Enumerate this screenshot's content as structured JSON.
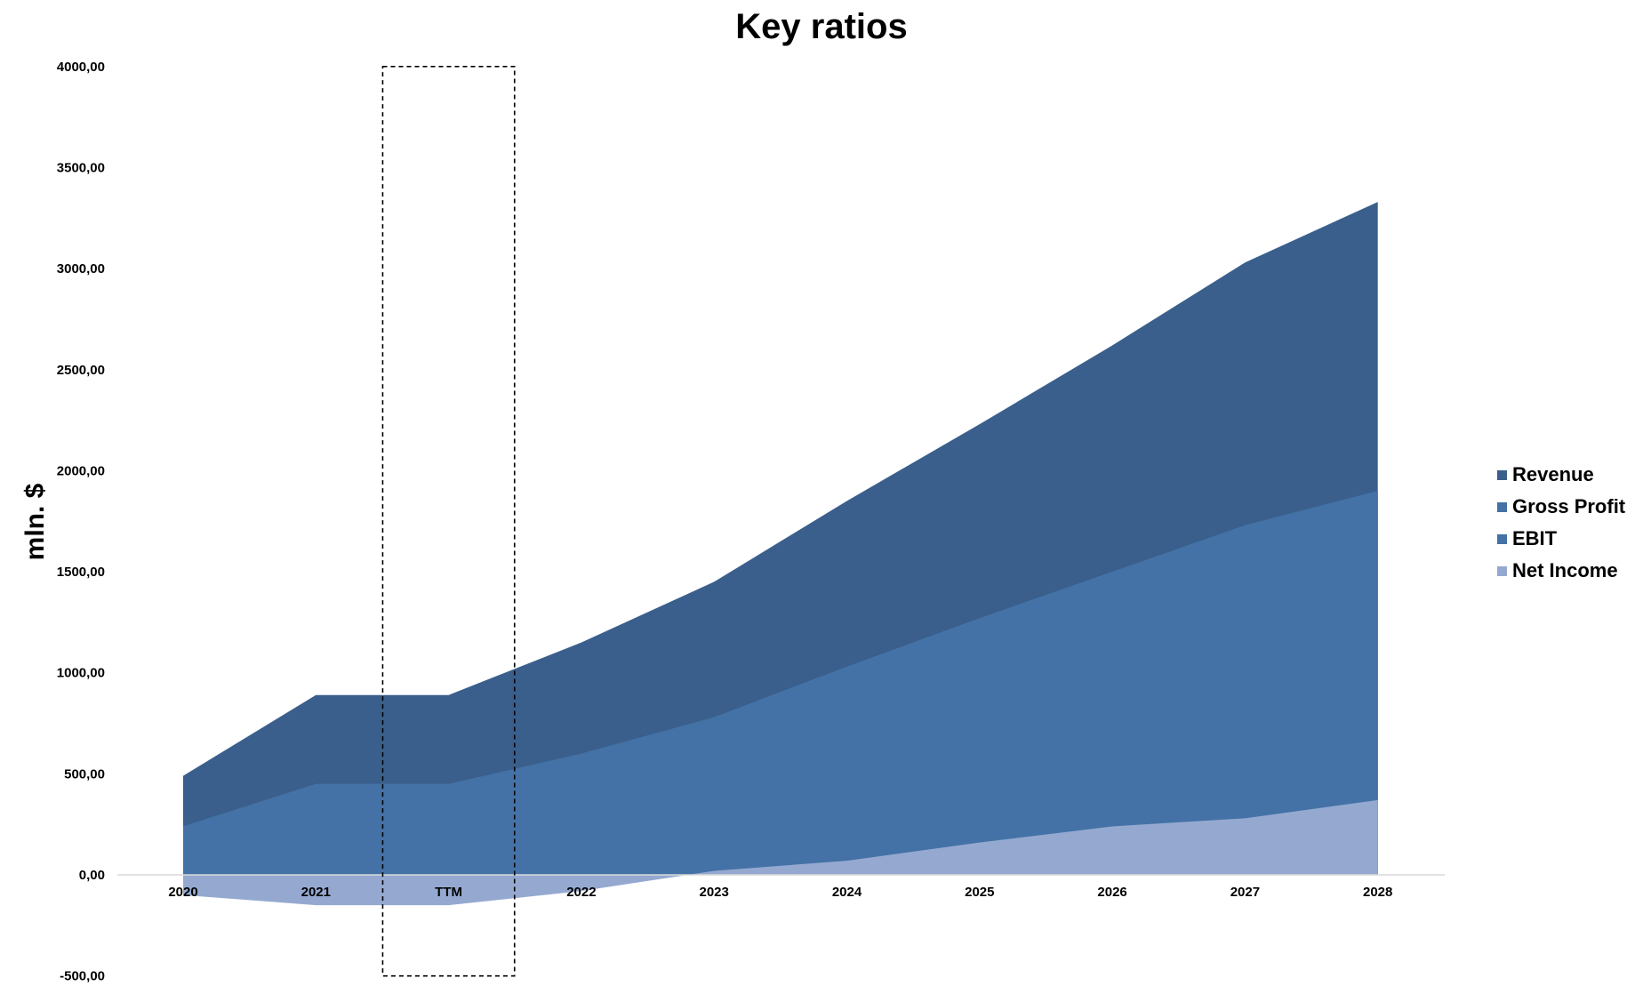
{
  "chart_data": {
    "type": "area",
    "title": "Key ratios",
    "xlabel": "",
    "ylabel": "mln. $",
    "categories": [
      "2020",
      "2021",
      "TTM",
      "2022",
      "2023",
      "2024",
      "2025",
      "2026",
      "2027",
      "2028"
    ],
    "ylim": [
      -500,
      4000
    ],
    "yticks": [
      -500,
      0,
      500,
      1000,
      1500,
      2000,
      2500,
      3000,
      3500,
      4000
    ],
    "ytick_labels": [
      "-500,00",
      "0,00",
      "500,00",
      "1000,00",
      "1500,00",
      "2000,00",
      "2500,00",
      "3000,00",
      "3500,00",
      "4000,00"
    ],
    "grid": false,
    "legend_position": "right",
    "series": [
      {
        "name": "Revenue",
        "color": "#3a5f8c",
        "values": [
          490,
          890,
          890,
          1150,
          1450,
          1850,
          2230,
          2620,
          3030,
          3330
        ]
      },
      {
        "name": "Gross Profit",
        "color": "#4472a6",
        "values": [
          240,
          450,
          450,
          600,
          780,
          1030,
          1270,
          1500,
          1730,
          1900
        ]
      },
      {
        "name": "EBIT",
        "color": "#4472a6",
        "values": [
          240,
          450,
          450,
          600,
          780,
          1030,
          1270,
          1500,
          1730,
          1900
        ]
      },
      {
        "name": "Net Income",
        "color": "#95a9d0",
        "values": [
          -100,
          -150,
          -150,
          -80,
          20,
          70,
          160,
          240,
          280,
          370
        ]
      }
    ],
    "highlight": {
      "category": "TTM",
      "style": "dashed-box"
    }
  }
}
